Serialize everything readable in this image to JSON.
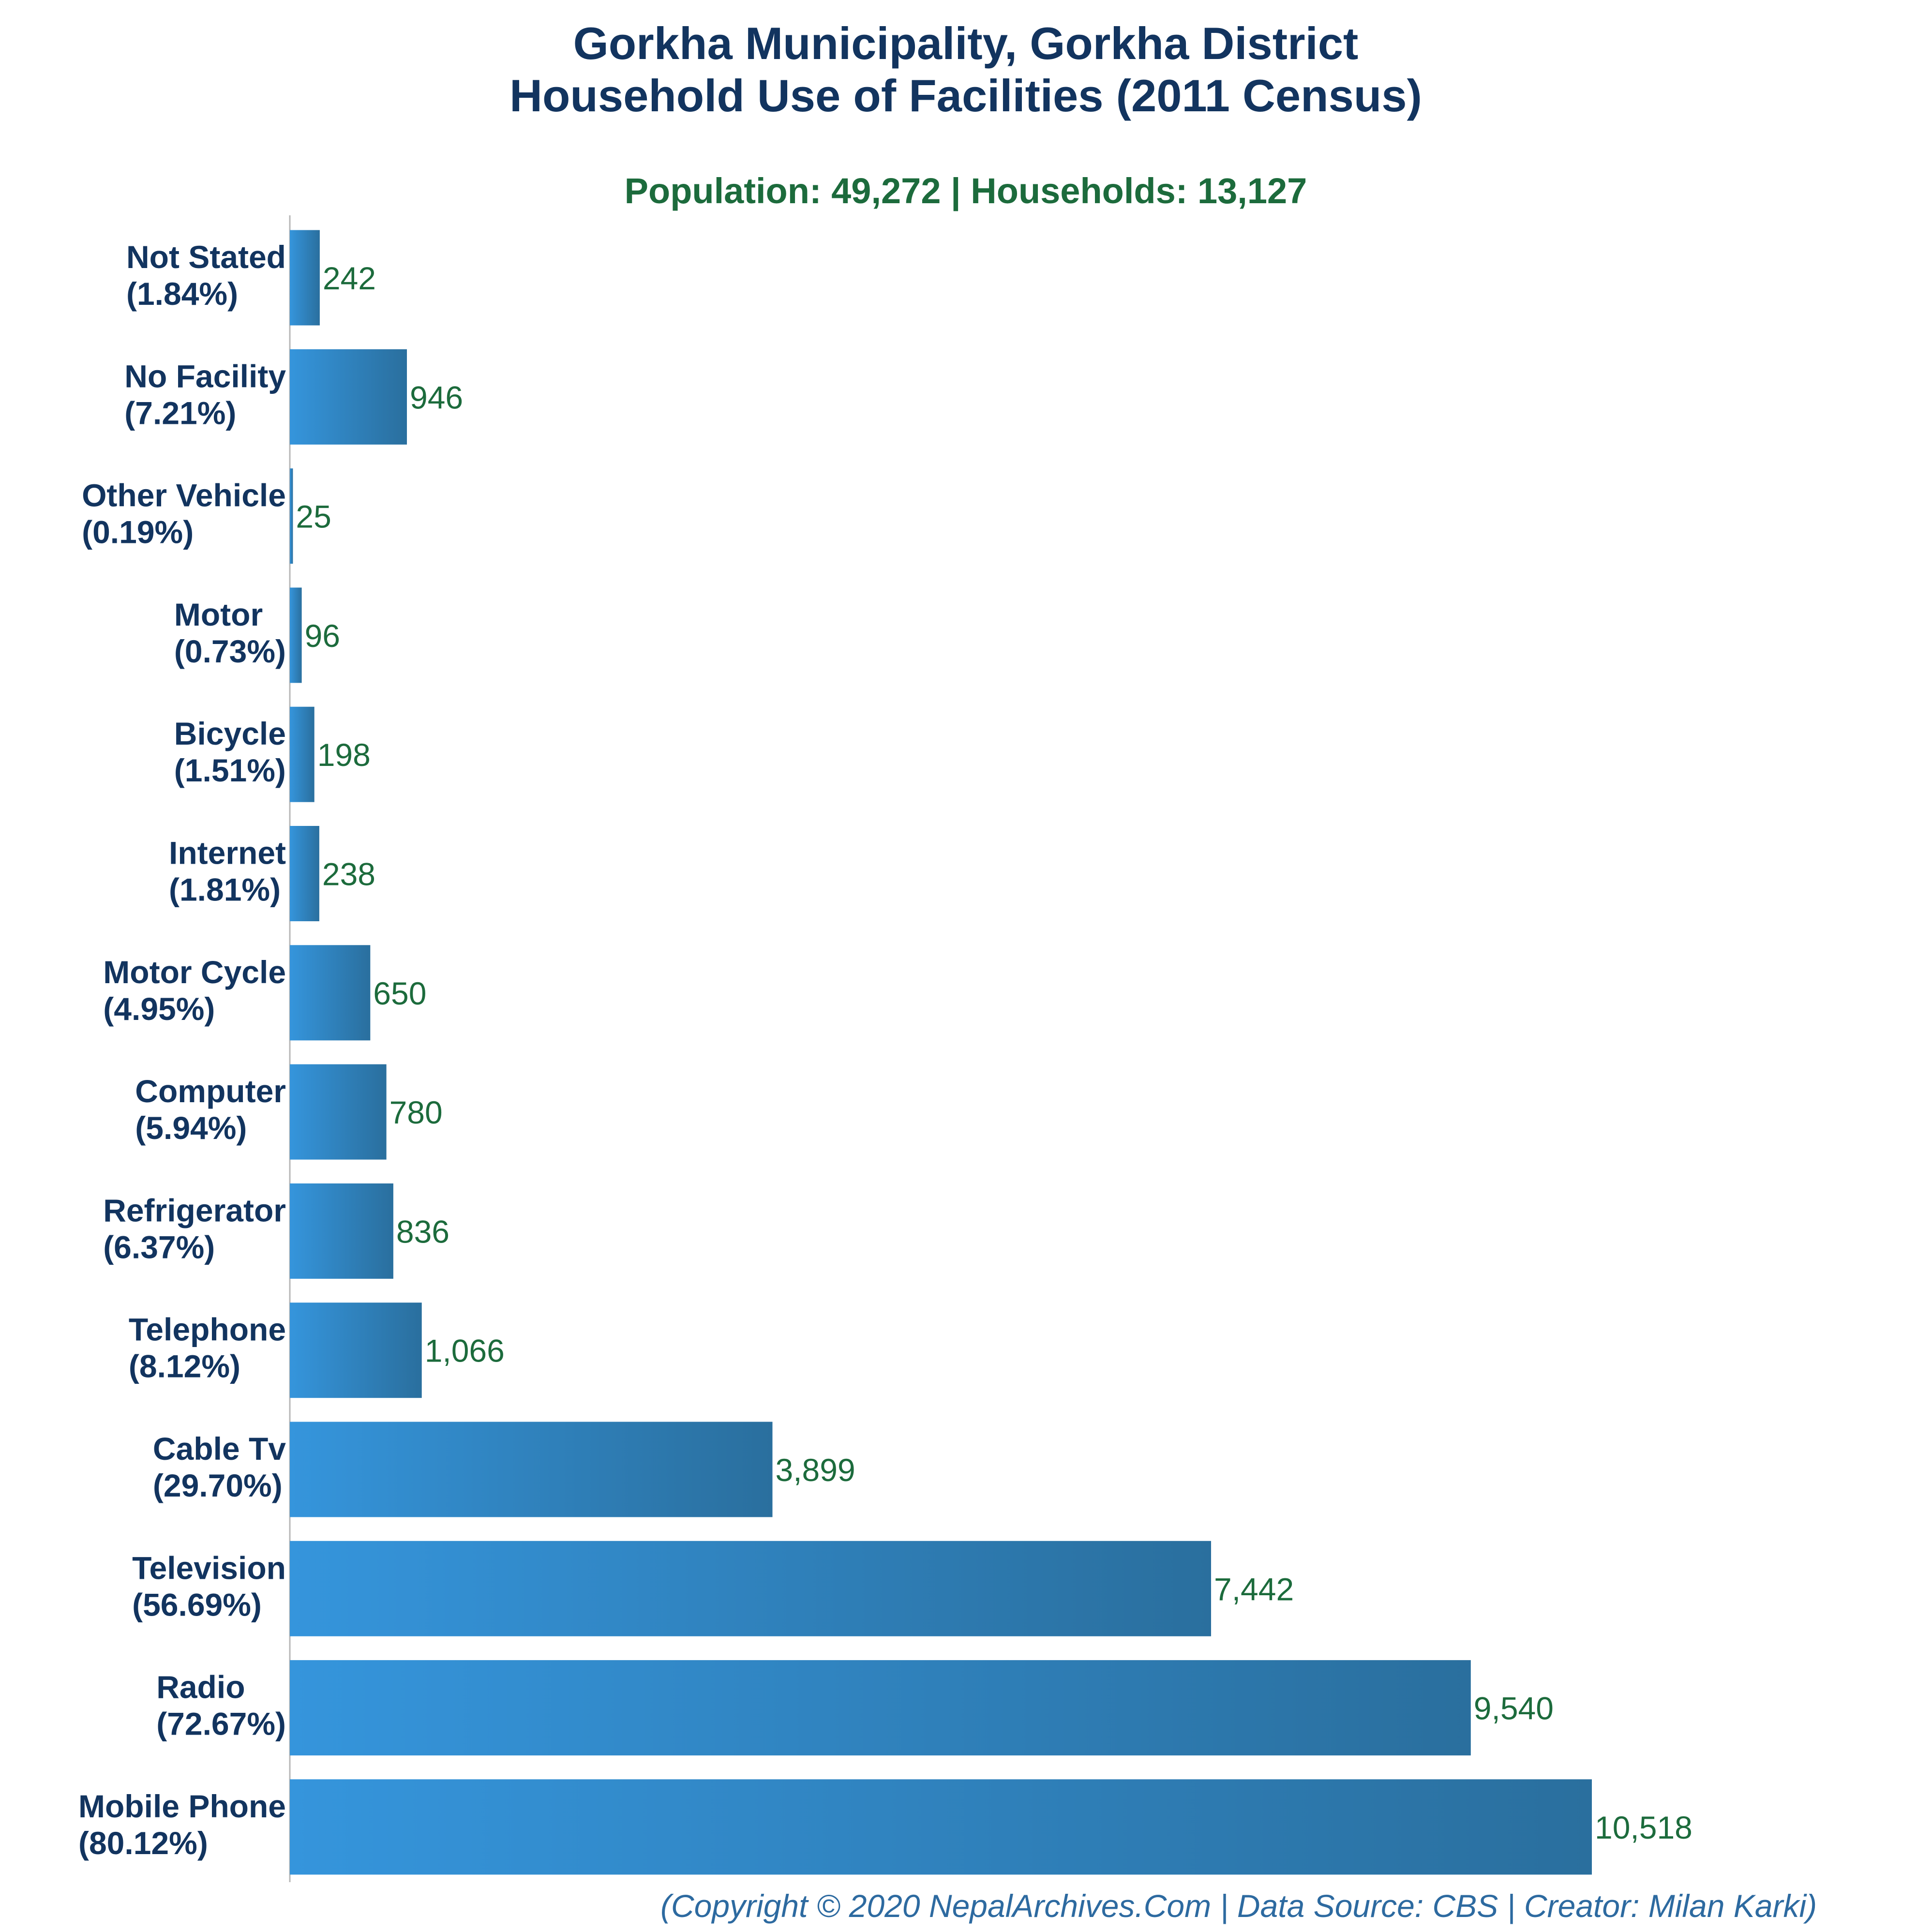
{
  "title_line1": "Gorkha Municipality, Gorkha District",
  "title_line2": "Household Use of Facilities (2011 Census)",
  "subtitle": "Population: 49,272 | Households: 13,127",
  "footer": "(Copyright © 2020 NepalArchives.Com | Data Source: CBS | Creator: Milan Karki)",
  "colors": {
    "bar_light": "#3595dc",
    "bar_dark": "#2a6f9e",
    "title": "#12345f",
    "value": "#1c6b3c",
    "axis": "#b7b7b7",
    "footer": "#2d6aa0"
  },
  "chart_data": {
    "type": "bar",
    "orientation": "horizontal",
    "title": "Gorkha Municipality, Gorkha District Household Use of Facilities (2011 Census)",
    "subtitle": "Population: 49,272 | Households: 13,127",
    "categories": [
      "Not Stated",
      "No Facility",
      "Other Vehicle",
      "Motor",
      "Bicycle",
      "Internet",
      "Motor Cycle",
      "Computer",
      "Refrigerator",
      "Telephone",
      "Cable Tv",
      "Television",
      "Radio",
      "Mobile Phone"
    ],
    "percents": [
      "(1.84%)",
      "(7.21%)",
      "(0.19%)",
      "(0.73%)",
      "(1.51%)",
      "(1.81%)",
      "(4.95%)",
      "(5.94%)",
      "(6.37%)",
      "(8.12%)",
      "(29.70%)",
      "(56.69%)",
      "(72.67%)",
      "(80.12%)"
    ],
    "values": [
      242,
      946,
      25,
      96,
      198,
      238,
      650,
      780,
      836,
      1066,
      3899,
      7442,
      9540,
      10518
    ],
    "value_labels": [
      "242",
      "946",
      "25",
      "96",
      "198",
      "238",
      "650",
      "780",
      "836",
      "1,066",
      "3,899",
      "7,442",
      "9,540",
      "10,518"
    ],
    "xlim": [
      0,
      13000
    ],
    "grid": false,
    "legend": "none"
  }
}
